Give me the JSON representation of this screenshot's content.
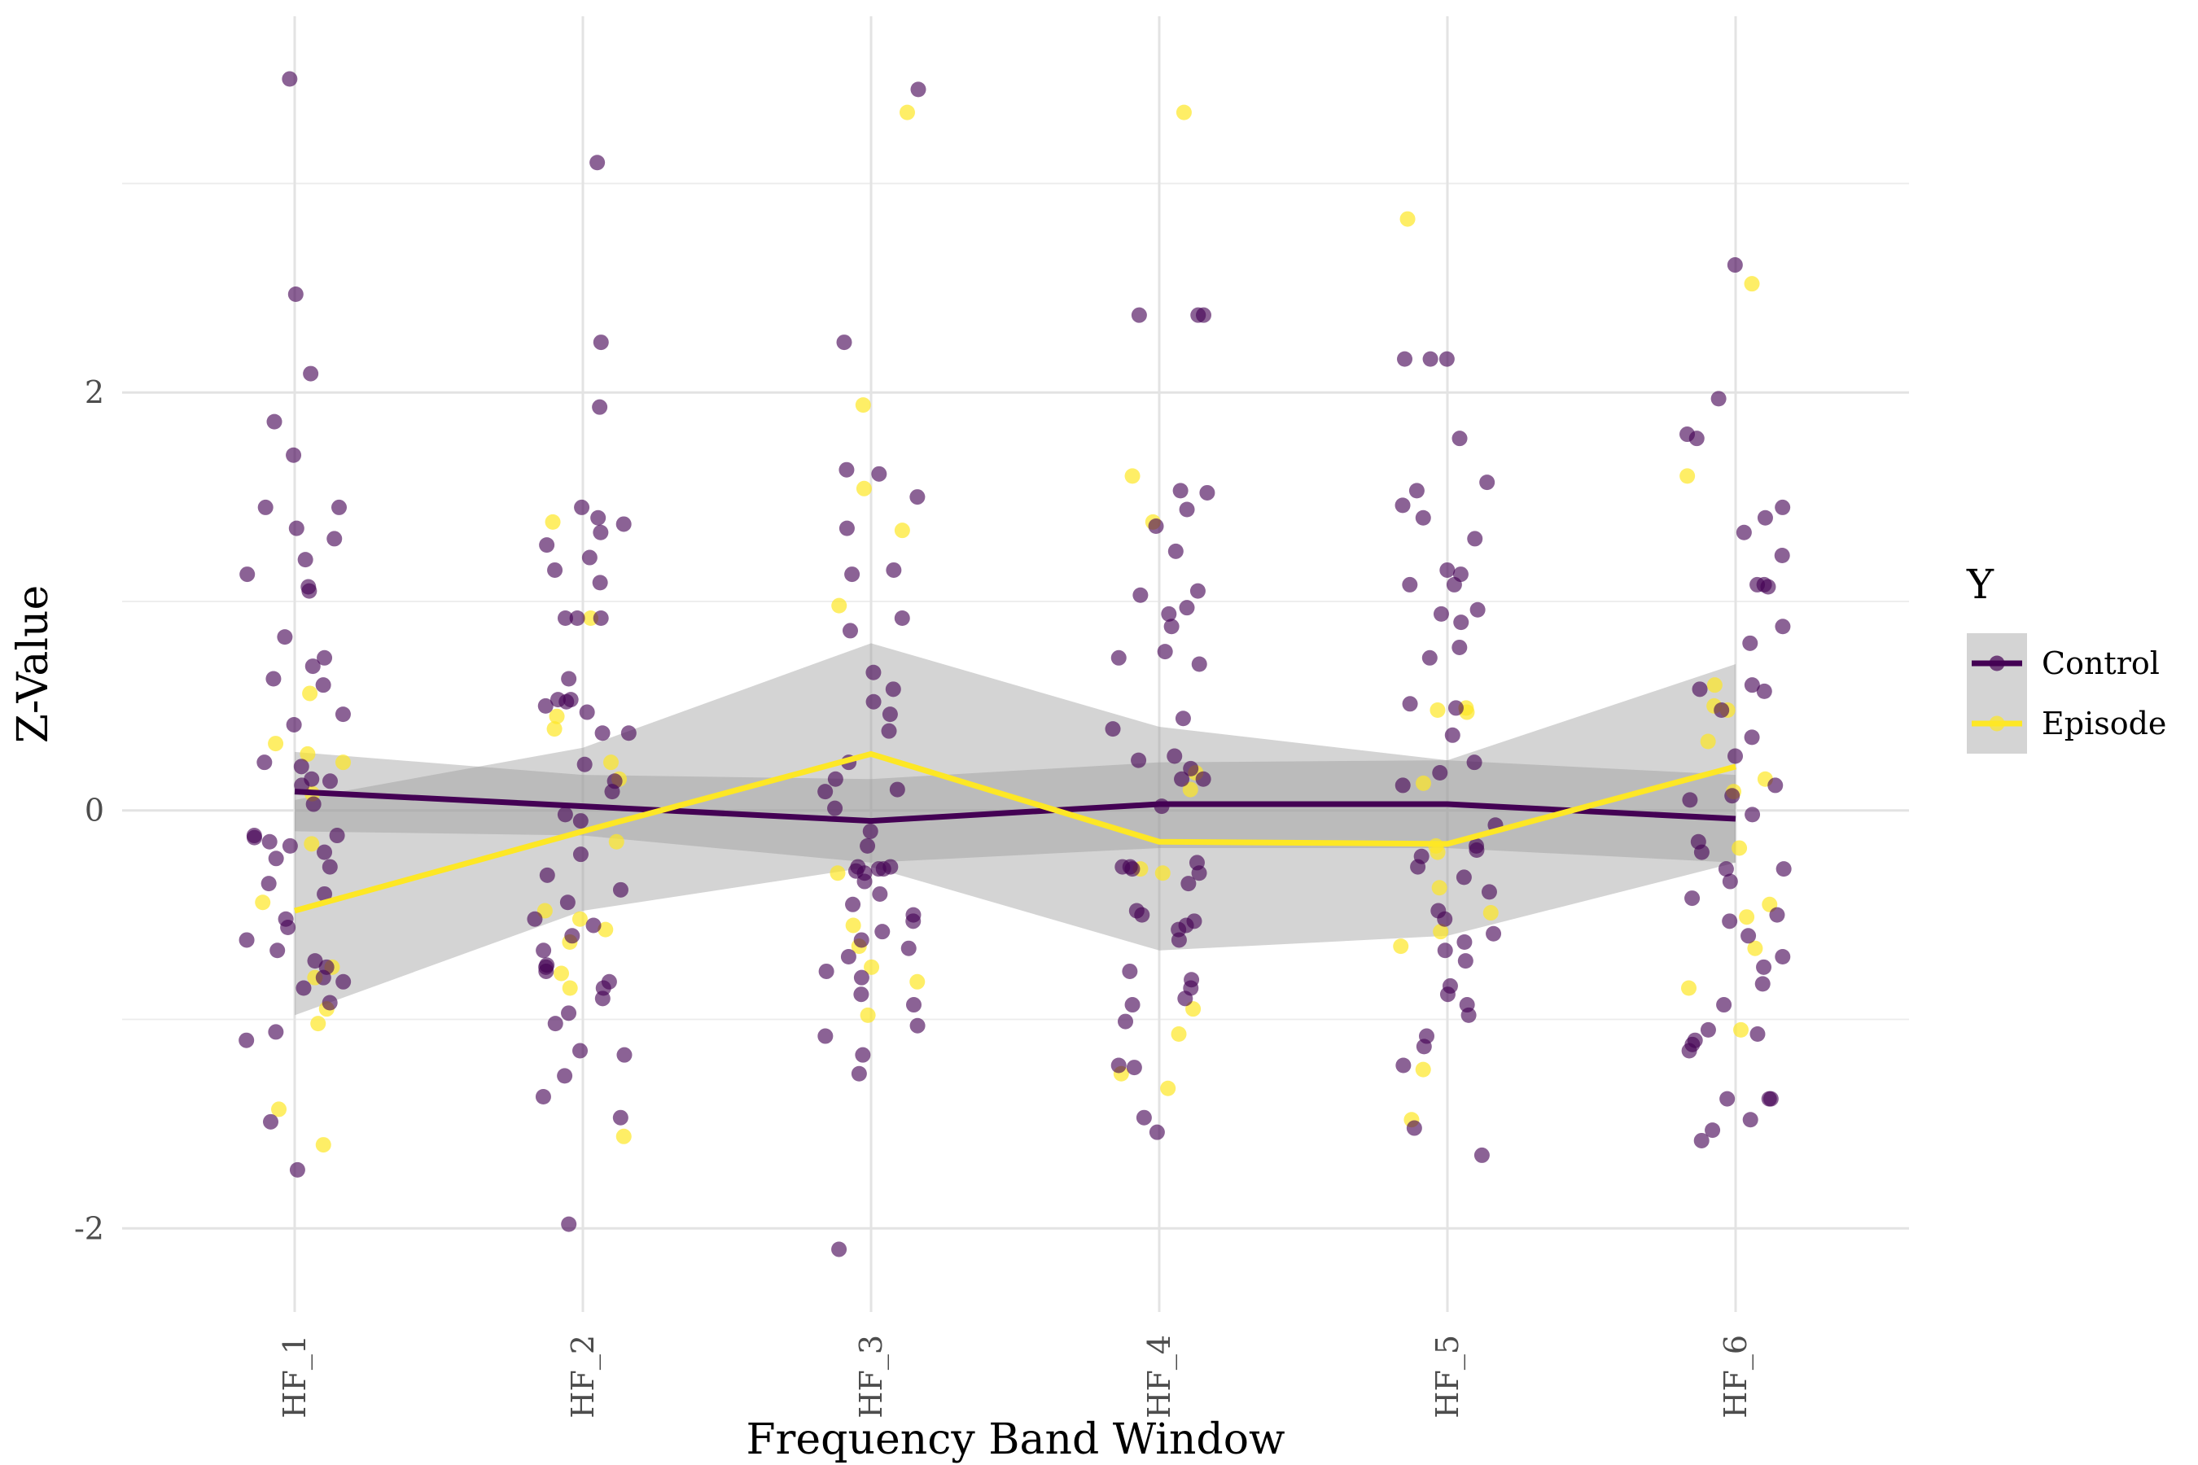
{
  "chart_data": {
    "type": "scatter",
    "title": "",
    "xlabel": "Frequency Band Window",
    "ylabel": "Z-Value",
    "categories": [
      "HF_1",
      "HF_2",
      "HF_3",
      "HF_4",
      "HF_5",
      "HF_6"
    ],
    "ylim": [
      -2.4,
      3.8
    ],
    "yticks": [
      -2,
      0,
      2
    ],
    "grid": true,
    "legend": {
      "title": "Y",
      "position": "right",
      "entries": [
        "Control",
        "Episode"
      ]
    },
    "series": [
      {
        "name": "Control",
        "color": "#440154",
        "mean": [
          0.09,
          0.02,
          -0.05,
          0.03,
          0.03,
          -0.04
        ],
        "ci_lower": [
          -0.1,
          -0.12,
          -0.25,
          -0.18,
          -0.18,
          -0.25
        ],
        "ci_upper": [
          0.28,
          0.17,
          0.15,
          0.23,
          0.24,
          0.17
        ],
        "points": [
          [
            3.5,
            2.47,
            2.09,
            1.86,
            1.7,
            1.45,
            1.45,
            1.35,
            1.3,
            1.2,
            1.13,
            1.07,
            1.05,
            0.83,
            0.73,
            0.69,
            0.63,
            0.6,
            0.46,
            0.41,
            0.23,
            0.21,
            0.15,
            0.14,
            0.12,
            0.03,
            -0.12,
            -0.12,
            -0.13,
            -0.15,
            -0.17,
            -0.2,
            -0.23,
            -0.27,
            -0.35,
            -0.4,
            -0.52,
            -0.56,
            -0.62,
            -0.67,
            -0.72,
            -0.75,
            -0.8,
            -0.82,
            -0.85,
            -0.92,
            -1.06,
            -1.1,
            -1.49,
            -1.72
          ],
          [
            3.1,
            2.24,
            1.93,
            1.45,
            1.4,
            1.37,
            1.33,
            1.27,
            1.21,
            1.15,
            1.09,
            0.92,
            0.92,
            0.92,
            0.63,
            0.53,
            0.53,
            0.52,
            0.5,
            0.47,
            0.37,
            0.37,
            0.22,
            0.14,
            0.09,
            -0.02,
            -0.05,
            -0.21,
            -0.31,
            -0.38,
            -0.44,
            -0.52,
            -0.55,
            -0.6,
            -0.67,
            -0.74,
            -0.75,
            -0.77,
            -0.82,
            -0.85,
            -0.9,
            -0.97,
            -1.02,
            -1.15,
            -1.17,
            -1.27,
            -1.37,
            -1.47,
            -1.98
          ],
          [
            3.45,
            2.24,
            1.63,
            1.61,
            1.5,
            1.35,
            1.15,
            1.13,
            0.92,
            0.86,
            0.66,
            0.58,
            0.52,
            0.46,
            0.38,
            0.23,
            0.15,
            0.1,
            0.09,
            0.01,
            -0.1,
            -0.17,
            -0.27,
            -0.27,
            -0.28,
            -0.28,
            -0.29,
            -0.3,
            -0.34,
            -0.4,
            -0.45,
            -0.5,
            -0.53,
            -0.58,
            -0.62,
            -0.66,
            -0.7,
            -0.77,
            -0.8,
            -0.88,
            -0.93,
            -1.03,
            -1.08,
            -1.17,
            -1.26,
            -2.1
          ],
          [
            2.37,
            2.37,
            2.37,
            1.53,
            1.52,
            1.44,
            1.36,
            1.24,
            1.05,
            1.03,
            0.97,
            0.94,
            0.88,
            0.76,
            0.73,
            0.7,
            0.44,
            0.39,
            0.26,
            0.24,
            0.2,
            0.15,
            0.15,
            0.02,
            -0.25,
            -0.27,
            -0.27,
            -0.28,
            -0.3,
            -0.35,
            -0.48,
            -0.5,
            -0.53,
            -0.55,
            -0.57,
            -0.62,
            -0.77,
            -0.81,
            -0.85,
            -0.9,
            -0.93,
            -1.01,
            -1.22,
            -1.23,
            -1.47,
            -1.54
          ],
          [
            2.16,
            2.16,
            2.16,
            1.78,
            1.57,
            1.53,
            1.46,
            1.4,
            1.3,
            1.15,
            1.13,
            1.08,
            1.08,
            0.96,
            0.94,
            0.9,
            0.78,
            0.73,
            0.51,
            0.49,
            0.36,
            0.23,
            0.18,
            0.12,
            -0.07,
            -0.17,
            -0.19,
            -0.22,
            -0.27,
            -0.32,
            -0.39,
            -0.48,
            -0.52,
            -0.59,
            -0.63,
            -0.67,
            -0.72,
            -0.84,
            -0.88,
            -0.93,
            -0.98,
            -1.08,
            -1.13,
            -1.22,
            -1.52,
            -1.65
          ],
          [
            2.61,
            1.97,
            1.8,
            1.78,
            1.45,
            1.4,
            1.33,
            1.22,
            1.08,
            1.08,
            1.07,
            0.88,
            0.8,
            0.6,
            0.58,
            0.57,
            0.48,
            0.35,
            0.26,
            0.12,
            0.07,
            0.05,
            -0.02,
            -0.15,
            -0.2,
            -0.28,
            -0.28,
            -0.34,
            -0.42,
            -0.5,
            -0.53,
            -0.6,
            -0.7,
            -0.75,
            -0.83,
            -0.93,
            -1.05,
            -1.07,
            -1.12,
            -1.15,
            -1.38,
            -1.38,
            -1.38,
            -1.48,
            -1.53,
            -1.58,
            -1.1
          ]
        ]
      },
      {
        "name": "Episode",
        "color": "#fde725",
        "mean": [
          -0.48,
          -0.1,
          0.27,
          -0.15,
          -0.16,
          0.21
        ],
        "ci_lower": [
          -0.98,
          -0.48,
          -0.27,
          -0.67,
          -0.6,
          -0.25
        ],
        "ci_upper": [
          0.05,
          0.3,
          0.8,
          0.4,
          0.24,
          0.7
        ],
        "points": [
          [
            0.56,
            0.32,
            0.27,
            0.23,
            0.08,
            -0.16,
            -0.44,
            -0.75,
            -0.8,
            -0.95,
            -1.02,
            -1.43,
            -1.6
          ],
          [
            1.38,
            0.92,
            0.45,
            0.39,
            0.23,
            0.15,
            -0.15,
            -0.48,
            -0.52,
            -0.57,
            -0.63,
            -0.78,
            -0.85,
            -1.56
          ],
          [
            3.34,
            1.94,
            1.54,
            1.34,
            0.98,
            -0.3,
            -0.55,
            -0.65,
            -0.75,
            -0.82,
            -0.98
          ],
          [
            3.34,
            1.6,
            1.38,
            0.18,
            0.1,
            -0.28,
            -0.3,
            -0.95,
            -1.07,
            -1.26,
            -1.33
          ],
          [
            2.83,
            0.49,
            0.48,
            0.47,
            0.13,
            -0.17,
            -0.2,
            -0.37,
            -0.49,
            -0.58,
            -0.65,
            -1.24,
            -1.48
          ],
          [
            2.52,
            1.6,
            0.6,
            0.5,
            0.48,
            0.33,
            0.15,
            0.09,
            -0.18,
            -0.45,
            -0.51,
            -0.66,
            -0.85,
            -1.05
          ]
        ]
      }
    ]
  }
}
